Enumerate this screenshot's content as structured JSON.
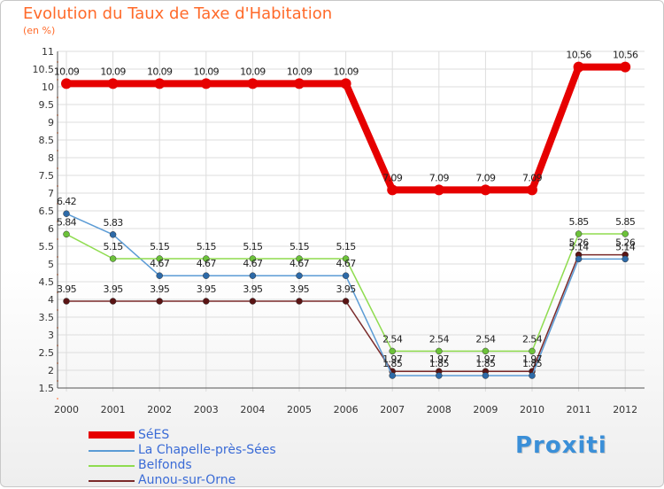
{
  "header": {
    "title": "Evolution du Taux de Taxe d'Habitation",
    "subtitle": "(en %)"
  },
  "logo": {
    "text": "Proxiti"
  },
  "chart_data": {
    "type": "line",
    "title": "Evolution du Taux de Taxe d'Habitation",
    "ylabel": "(en %)",
    "xlabel": "",
    "x": [
      "2000",
      "2001",
      "2002",
      "2003",
      "2004",
      "2005",
      "2006",
      "2007",
      "2008",
      "2009",
      "2010",
      "2011",
      "2012"
    ],
    "ylim": [
      1.5,
      11
    ],
    "yticks": [
      "1.5",
      "2",
      "2.5",
      "3",
      "3.5",
      "4",
      "4.5",
      "5",
      "5.5",
      "6",
      "6.5",
      "7",
      "7.5",
      "8",
      "8.5",
      "9",
      "9.5",
      "10",
      "10.5",
      "11"
    ],
    "grid": true,
    "legend_position": "bottom-left",
    "series": [
      {
        "name": "SéES",
        "color": "#e60000",
        "values": [
          10.09,
          10.09,
          10.09,
          10.09,
          10.09,
          10.09,
          10.09,
          7.09,
          7.09,
          7.09,
          7.09,
          10.56,
          10.56
        ],
        "labels": [
          "10.09",
          "10.09",
          "10.09",
          "10.09",
          "10.09",
          "10.09",
          "10.09",
          "7.09",
          "7.09",
          "7.09",
          "7.09",
          "10.56",
          "10.56"
        ]
      },
      {
        "name": "La Chapelle-près-Sées",
        "color": "#5b9bd5",
        "values": [
          6.42,
          5.83,
          4.67,
          4.67,
          4.67,
          4.67,
          4.67,
          1.85,
          1.85,
          1.85,
          1.85,
          5.14,
          5.14
        ],
        "labels": [
          "6.42",
          "5.83",
          "4.67",
          "4.67",
          "4.67",
          "4.67",
          "4.67",
          "1.85",
          "1.85",
          "1.85",
          "1.85",
          "5.14",
          "5.14"
        ]
      },
      {
        "name": "Belfonds",
        "color": "#8fdc4f",
        "values": [
          5.84,
          5.15,
          5.15,
          5.15,
          5.15,
          5.15,
          5.15,
          2.54,
          2.54,
          2.54,
          2.54,
          5.85,
          5.85
        ],
        "labels": [
          "5.84",
          "5.15",
          "5.15",
          "5.15",
          "5.15",
          "5.15",
          "5.15",
          "2.54",
          "2.54",
          "2.54",
          "2.54",
          "5.85",
          "5.85"
        ]
      },
      {
        "name": "Aunou-sur-Orne",
        "color": "#7a2a2a",
        "values": [
          3.95,
          3.95,
          3.95,
          3.95,
          3.95,
          3.95,
          3.95,
          1.97,
          1.97,
          1.97,
          1.97,
          5.26,
          5.26
        ],
        "labels": [
          "3.95",
          "3.95",
          "3.95",
          "3.95",
          "3.95",
          "3.95",
          "3.95",
          "1.97",
          "1.97",
          "1.97",
          "1.97",
          "5.26",
          "5.26"
        ]
      }
    ]
  }
}
